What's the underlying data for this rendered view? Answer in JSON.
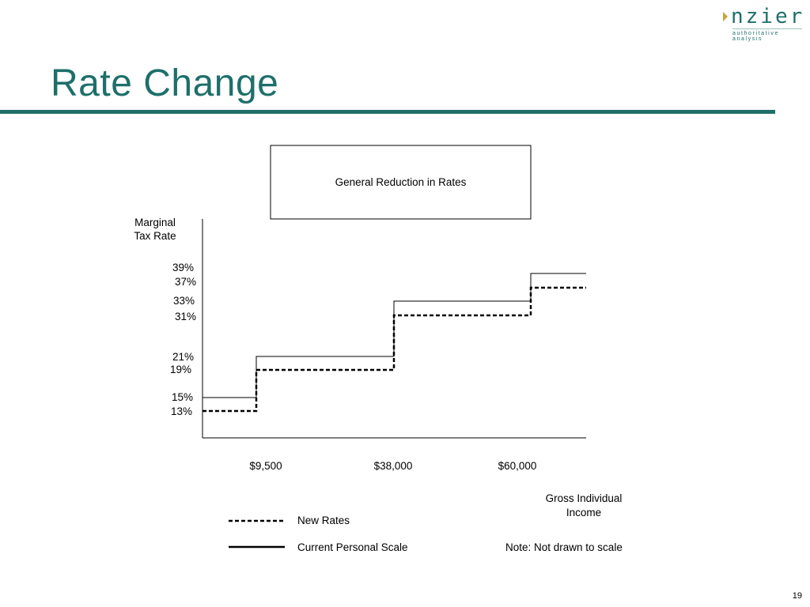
{
  "header": {
    "title": "Rate Change",
    "logo_text": "nzier",
    "logo_tagline": "authoritative analysis"
  },
  "page_number": "19",
  "chart_data": {
    "type": "line",
    "box_text": "General Reduction in Rates",
    "ylabel": "Marginal Tax Rate",
    "ylabel_lines": [
      "Marginal",
      "Tax Rate"
    ],
    "xlabel_lines": [
      "Gross Individual",
      "Income"
    ],
    "x_ticks": [
      {
        "label": "$9,500",
        "value": 9500
      },
      {
        "label": "$38,000",
        "value": 38000
      },
      {
        "label": "$60,000",
        "value": 60000
      }
    ],
    "y_ticks": [
      {
        "label": "39%",
        "value": 39
      },
      {
        "label": "37%",
        "value": 37
      },
      {
        "label": "33%",
        "value": 33
      },
      {
        "label": "31%",
        "value": 31
      },
      {
        "label": "21%",
        "value": 21
      },
      {
        "label": "19%",
        "value": 19
      },
      {
        "label": "15%",
        "value": 15
      },
      {
        "label": "13%",
        "value": 13
      }
    ],
    "series": [
      {
        "name": "Current Personal Scale",
        "style": "solid",
        "steps": [
          {
            "from": 0,
            "to": 9500,
            "rate": 15
          },
          {
            "from": 9500,
            "to": 38000,
            "rate": 21
          },
          {
            "from": 38000,
            "to": 60000,
            "rate": 33
          },
          {
            "from": 60000,
            "to": null,
            "rate": 39
          }
        ]
      },
      {
        "name": "New Rates",
        "style": "dashed",
        "steps": [
          {
            "from": 0,
            "to": 9500,
            "rate": 13
          },
          {
            "from": 9500,
            "to": 38000,
            "rate": 19
          },
          {
            "from": 38000,
            "to": 60000,
            "rate": 31
          },
          {
            "from": 60000,
            "to": null,
            "rate": 37
          }
        ]
      }
    ],
    "legend": [
      {
        "label": "New Rates",
        "style": "dashed"
      },
      {
        "label": "Current Personal Scale",
        "style": "solid"
      }
    ],
    "note": "Note: Not drawn to scale"
  }
}
